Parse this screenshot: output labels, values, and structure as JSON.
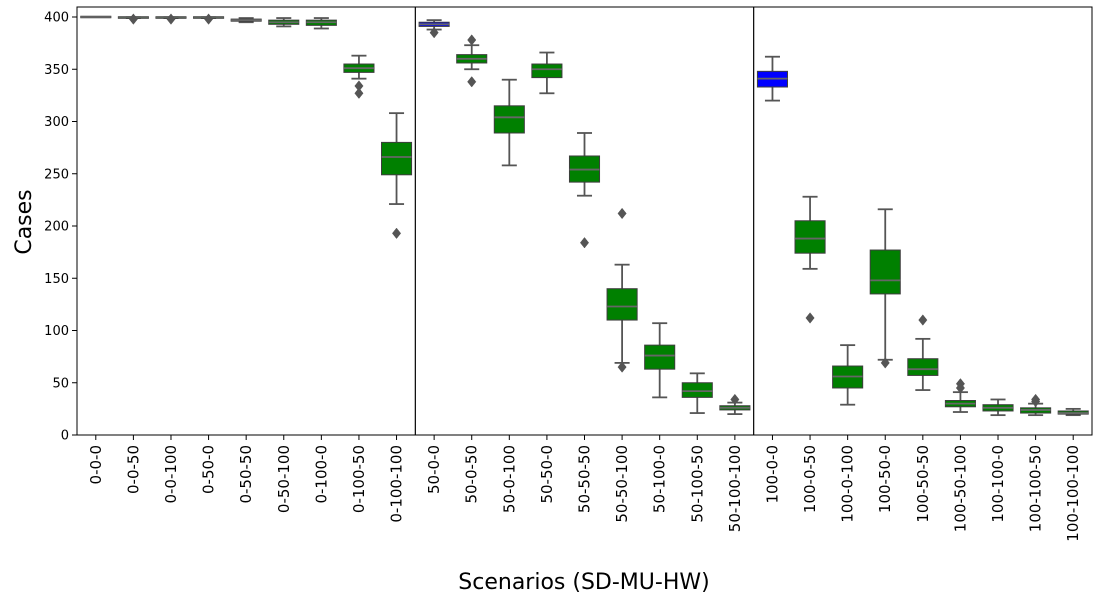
{
  "chart_data": {
    "type": "box",
    "title": "",
    "xlabel": "Scenarios (SD-MU-HW)",
    "ylabel": "Cases",
    "ylim": [
      0,
      405
    ],
    "yticks": [
      0,
      50,
      100,
      150,
      200,
      250,
      300,
      350,
      400
    ],
    "grid": false,
    "colors": {
      "baseline": "#0000ff",
      "scenario": "#008000",
      "whisker": "#555555",
      "median": "#666666",
      "frame": "#000000"
    },
    "categories": [
      "0-0-0",
      "0-0-50",
      "0-0-100",
      "0-50-0",
      "0-50-50",
      "0-50-100",
      "0-100-0",
      "0-100-50",
      "0-100-100",
      "50-0-0",
      "50-0-50",
      "50-0-100",
      "50-50-0",
      "50-50-50",
      "50-50-100",
      "50-100-0",
      "50-100-50",
      "50-100-100",
      "100-0-0",
      "100-0-50",
      "100-0-100",
      "100-50-0",
      "100-50-50",
      "100-50-100",
      "100-100-0",
      "100-100-50",
      "100-100-100"
    ],
    "group_separators_after": [
      "0-100-100",
      "50-100-100"
    ],
    "boxes": [
      {
        "category": "0-0-0",
        "q1": 400,
        "median": 400,
        "q3": 400,
        "whisker_low": 400,
        "whisker_high": 400,
        "outliers": [],
        "color": "#008000"
      },
      {
        "category": "0-0-50",
        "q1": 399,
        "median": 400,
        "q3": 400,
        "whisker_low": 399,
        "whisker_high": 400,
        "outliers": [
          398
        ],
        "color": "#008000"
      },
      {
        "category": "0-0-100",
        "q1": 399,
        "median": 400,
        "q3": 400,
        "whisker_low": 399,
        "whisker_high": 400,
        "outliers": [
          398
        ],
        "color": "#008000"
      },
      {
        "category": "0-50-0",
        "q1": 399,
        "median": 400,
        "q3": 400,
        "whisker_low": 399,
        "whisker_high": 400,
        "outliers": [
          398
        ],
        "color": "#008000"
      },
      {
        "category": "0-50-50",
        "q1": 396,
        "median": 397,
        "q3": 398,
        "whisker_low": 395,
        "whisker_high": 399,
        "outliers": [],
        "color": "#008000"
      },
      {
        "category": "0-50-100",
        "q1": 393,
        "median": 395,
        "q3": 397,
        "whisker_low": 391,
        "whisker_high": 399,
        "outliers": [],
        "color": "#008000"
      },
      {
        "category": "0-100-0",
        "q1": 392,
        "median": 395,
        "q3": 397,
        "whisker_low": 389,
        "whisker_high": 399,
        "outliers": [],
        "color": "#008000"
      },
      {
        "category": "0-100-50",
        "q1": 347,
        "median": 351,
        "q3": 355,
        "whisker_low": 341,
        "whisker_high": 363,
        "outliers": [
          334,
          327
        ],
        "color": "#008000"
      },
      {
        "category": "0-100-100",
        "q1": 249,
        "median": 266,
        "q3": 280,
        "whisker_low": 221,
        "whisker_high": 308,
        "outliers": [
          193
        ],
        "color": "#008000"
      },
      {
        "category": "50-0-0",
        "q1": 391,
        "median": 393,
        "q3": 395,
        "whisker_low": 388,
        "whisker_high": 397,
        "outliers": [
          385
        ],
        "color": "#0000ff"
      },
      {
        "category": "50-0-50",
        "q1": 356,
        "median": 360,
        "q3": 364,
        "whisker_low": 350,
        "whisker_high": 373,
        "outliers": [
          378,
          338
        ],
        "color": "#008000"
      },
      {
        "category": "50-0-100",
        "q1": 289,
        "median": 304,
        "q3": 315,
        "whisker_low": 258,
        "whisker_high": 340,
        "outliers": [],
        "color": "#008000"
      },
      {
        "category": "50-50-0",
        "q1": 342,
        "median": 350,
        "q3": 355,
        "whisker_low": 327,
        "whisker_high": 366,
        "outliers": [],
        "color": "#008000"
      },
      {
        "category": "50-50-50",
        "q1": 242,
        "median": 254,
        "q3": 267,
        "whisker_low": 229,
        "whisker_high": 289,
        "outliers": [
          184
        ],
        "color": "#008000"
      },
      {
        "category": "50-50-100",
        "q1": 110,
        "median": 123,
        "q3": 140,
        "whisker_low": 69,
        "whisker_high": 163,
        "outliers": [
          212,
          65
        ],
        "color": "#008000"
      },
      {
        "category": "50-100-0",
        "q1": 63,
        "median": 76,
        "q3": 86,
        "whisker_low": 36,
        "whisker_high": 107,
        "outliers": [],
        "color": "#008000"
      },
      {
        "category": "50-100-50",
        "q1": 36,
        "median": 42,
        "q3": 50,
        "whisker_low": 21,
        "whisker_high": 59,
        "outliers": [],
        "color": "#008000"
      },
      {
        "category": "50-100-100",
        "q1": 24,
        "median": 26,
        "q3": 28,
        "whisker_low": 20,
        "whisker_high": 31,
        "outliers": [
          34
        ],
        "color": "#008000"
      },
      {
        "category": "100-0-0",
        "q1": 333,
        "median": 341,
        "q3": 348,
        "whisker_low": 320,
        "whisker_high": 362,
        "outliers": [],
        "color": "#0000ff"
      },
      {
        "category": "100-0-50",
        "q1": 174,
        "median": 188,
        "q3": 205,
        "whisker_low": 159,
        "whisker_high": 228,
        "outliers": [
          112
        ],
        "color": "#008000"
      },
      {
        "category": "100-0-100",
        "q1": 45,
        "median": 56,
        "q3": 66,
        "whisker_low": 29,
        "whisker_high": 86,
        "outliers": [],
        "color": "#008000"
      },
      {
        "category": "100-50-0",
        "q1": 135,
        "median": 148,
        "q3": 177,
        "whisker_low": 72,
        "whisker_high": 216,
        "outliers": [
          69
        ],
        "color": "#008000"
      },
      {
        "category": "100-50-50",
        "q1": 57,
        "median": 63,
        "q3": 73,
        "whisker_low": 43,
        "whisker_high": 92,
        "outliers": [
          110
        ],
        "color": "#008000"
      },
      {
        "category": "100-50-100",
        "q1": 27,
        "median": 30,
        "q3": 33,
        "whisker_low": 22,
        "whisker_high": 41,
        "outliers": [
          49,
          45
        ],
        "color": "#008000"
      },
      {
        "category": "100-100-0",
        "q1": 23,
        "median": 26,
        "q3": 29,
        "whisker_low": 19,
        "whisker_high": 34,
        "outliers": [],
        "color": "#008000"
      },
      {
        "category": "100-100-50",
        "q1": 21,
        "median": 24,
        "q3": 26,
        "whisker_low": 19,
        "whisker_high": 30,
        "outliers": [
          34,
          32
        ],
        "color": "#008000"
      },
      {
        "category": "100-100-100",
        "q1": 20,
        "median": 21,
        "q3": 23,
        "whisker_low": 19,
        "whisker_high": 25,
        "outliers": [],
        "color": "#008000"
      }
    ]
  }
}
